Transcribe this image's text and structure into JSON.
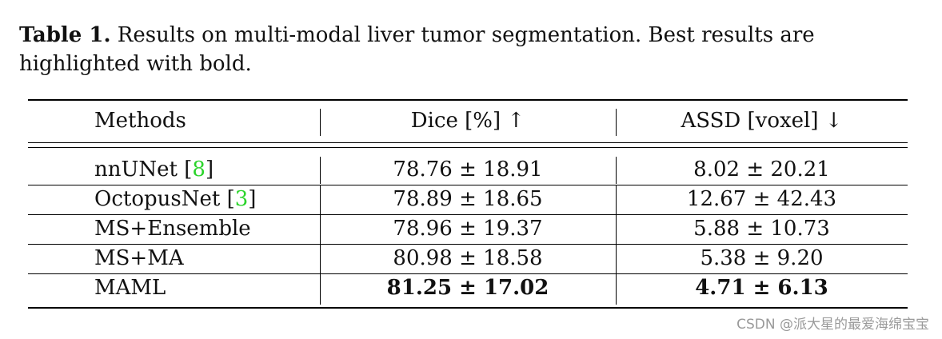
{
  "caption": {
    "label": "Table 1.",
    "text": " Results on multi-modal liver tumor segmentation. Best results are highlighted with bold."
  },
  "table": {
    "headers": [
      "Methods",
      "Dice [%] ↑",
      "ASSD [voxel] ↓"
    ],
    "rows": [
      {
        "method": "nnUNet ",
        "ref": "8",
        "dice": "78.76 ± 18.91",
        "assd": "8.02 ± 20.21"
      },
      {
        "method": "OctopusNet ",
        "ref": "3",
        "dice": "78.89 ± 18.65",
        "assd": "12.67 ± 42.43"
      },
      {
        "method": "MS+Ensemble",
        "ref": "",
        "dice": "78.96 ± 19.37",
        "assd": "5.88 ± 10.73"
      },
      {
        "method": "MS+MA",
        "ref": "",
        "dice": "80.98 ± 18.58",
        "assd": "5.38 ± 9.20"
      },
      {
        "method": "MAML",
        "ref": "",
        "dice": "81.25 ± 17.02",
        "assd": "4.71 ± 6.13"
      }
    ]
  },
  "watermark": "CSDN @派大星的最爱海绵宝宝"
}
